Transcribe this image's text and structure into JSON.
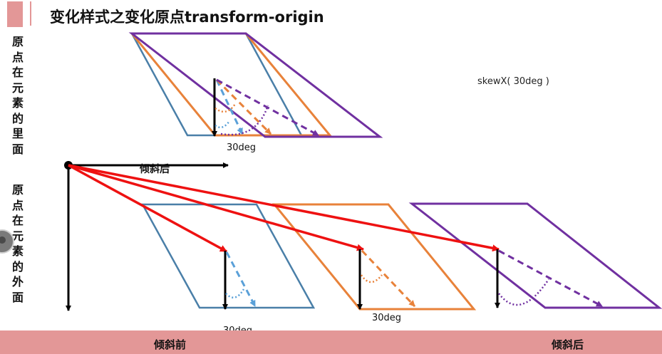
{
  "title": "变化样式之变化原点transform-origin",
  "side_label_top": "原点在元素的里面",
  "side_label_bottom": "原点在元素的外面",
  "note": "skewX( 30deg )",
  "angle_label": "30deg",
  "tilt_after_label": "倾斜后",
  "footer": {
    "before": "倾斜前",
    "after": "倾斜后"
  },
  "colors": {
    "accent": "#e39797",
    "blue": "#4a7fa8",
    "blue_dashed": "#5aa0d8",
    "orange": "#e8823a",
    "purple": "#7030a0",
    "red": "#ee1111",
    "black": "#000000"
  }
}
